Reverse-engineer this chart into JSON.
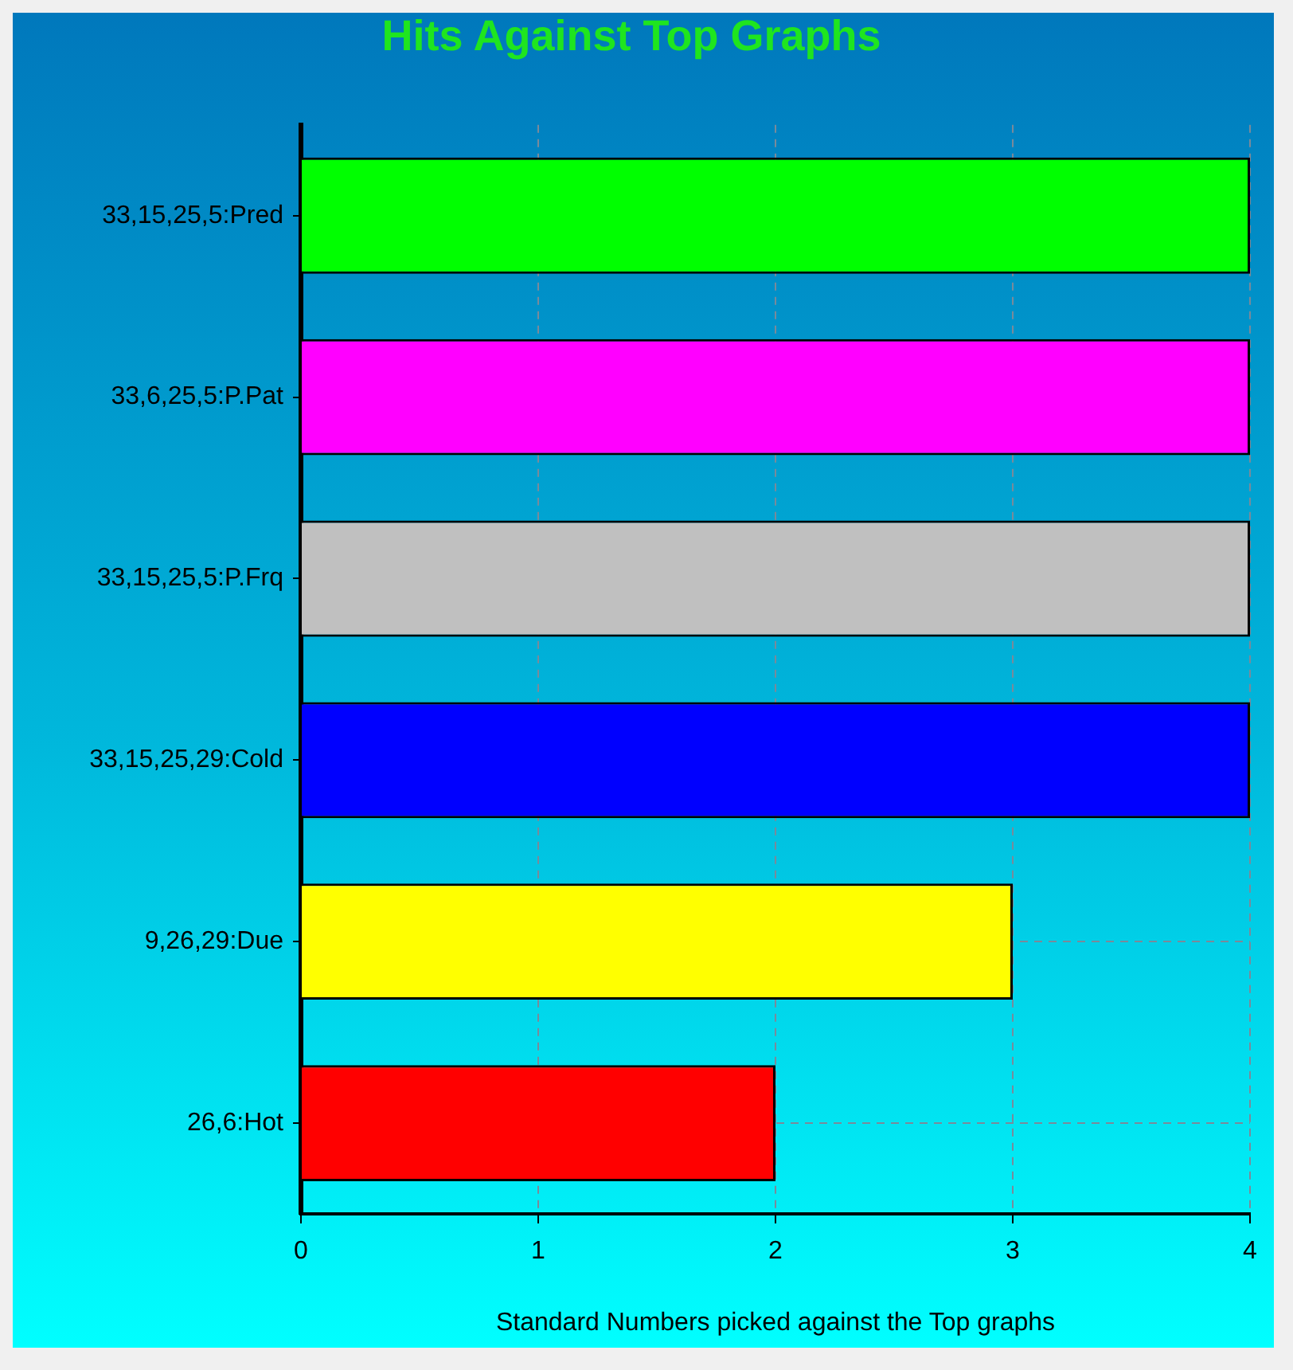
{
  "chart_data": {
    "type": "bar",
    "orientation": "horizontal",
    "title": "Hits Against Top Graphs",
    "xlabel": "Standard Numbers picked against the Top graphs",
    "categories": [
      "33,15,25,5:Pred",
      "33,6,25,5:P.Pat",
      "33,15,25,5:P.Frq",
      "33,15,25,29:Cold",
      "9,26,29:Due",
      "26,6:Hot"
    ],
    "values": [
      4,
      4,
      4,
      4,
      3,
      2
    ],
    "colors": [
      "#00ff00",
      "#ff00ff",
      "#c0c0c0",
      "#0000ff",
      "#ffff00",
      "#ff0000"
    ],
    "xlim": [
      0,
      4
    ],
    "xticks": [
      0,
      1,
      2,
      3,
      4
    ],
    "grid": true
  }
}
